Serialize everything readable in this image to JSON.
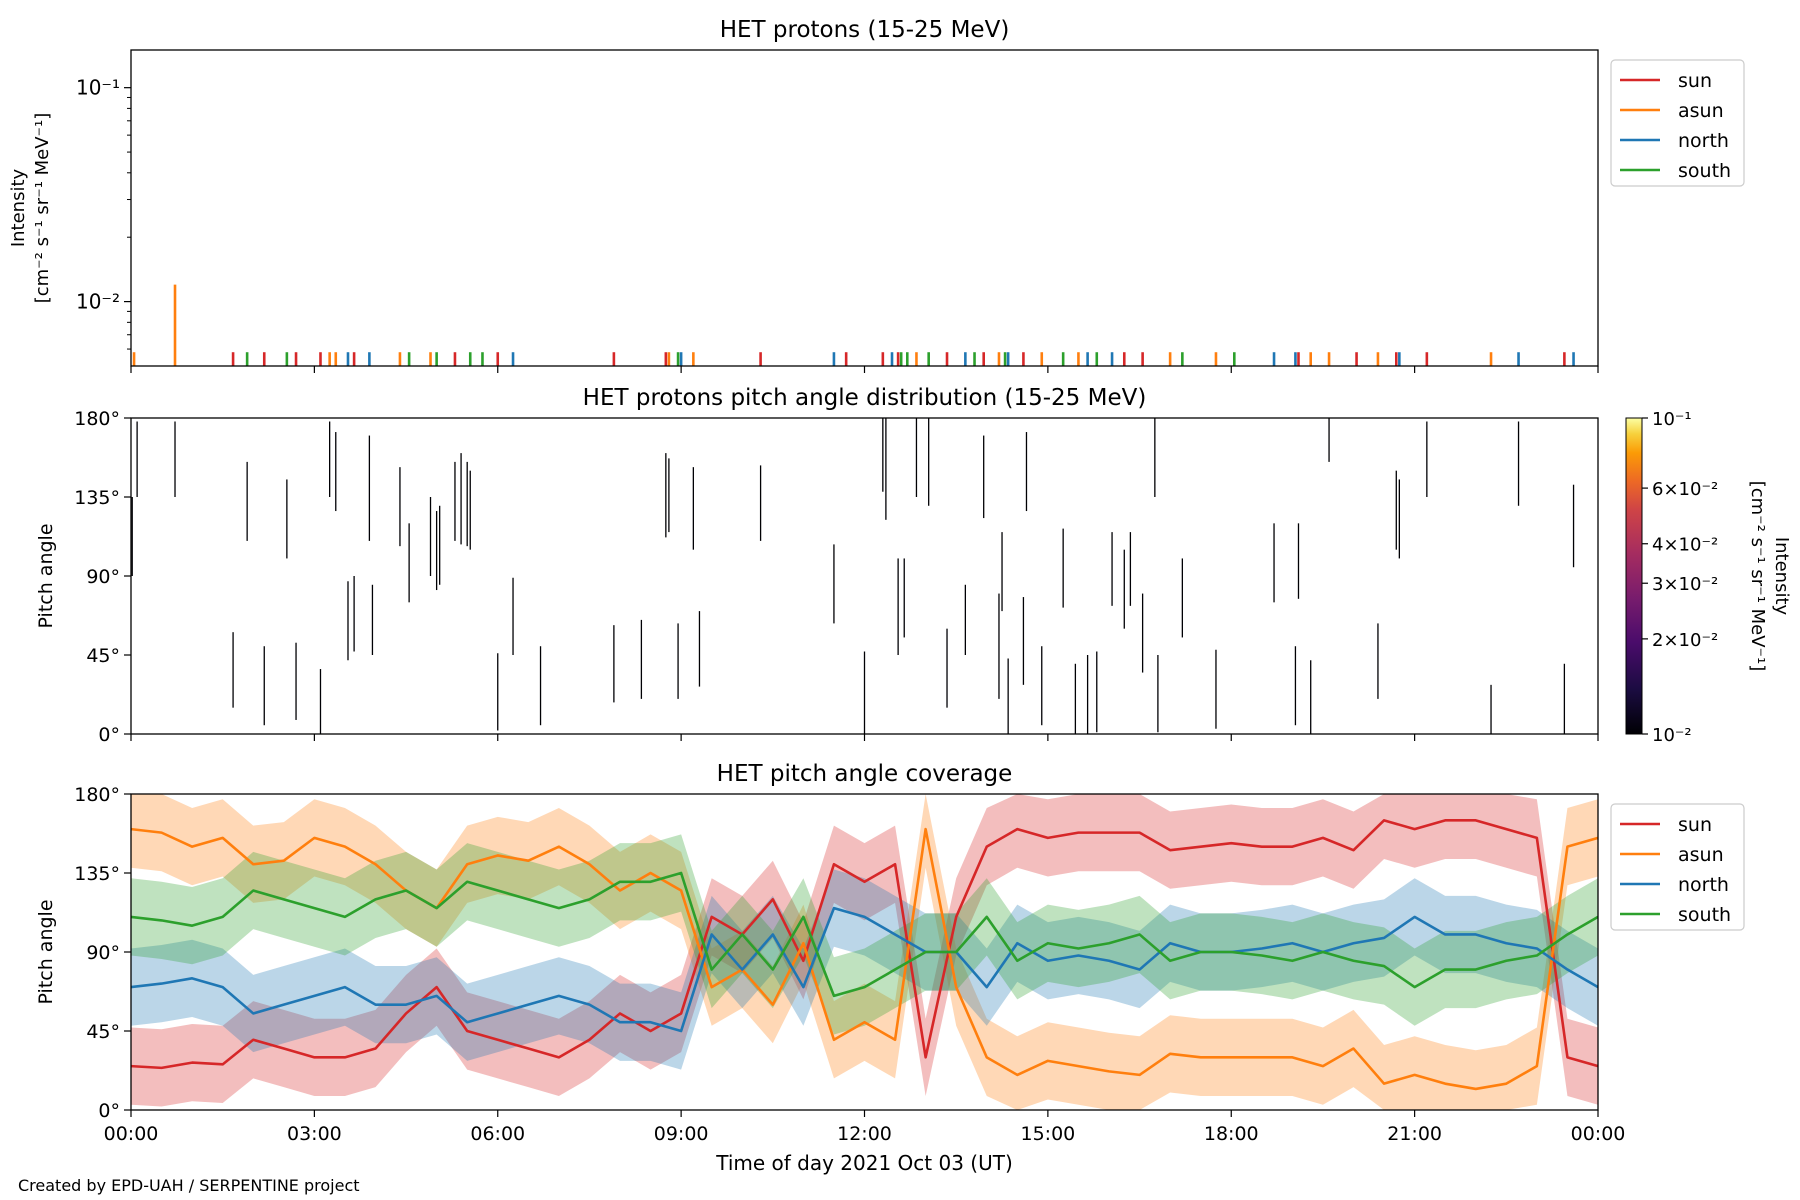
{
  "figure": {
    "credit": "Created by EPD-UAH / SERPENTINE project",
    "xlabel": "Time of day 2021 Oct 03 (UT)",
    "xticks": [
      "00:00",
      "03:00",
      "06:00",
      "09:00",
      "12:00",
      "15:00",
      "18:00",
      "21:00",
      "00:00"
    ],
    "xrange_hours": [
      0,
      24
    ]
  },
  "chart_data": [
    {
      "type": "line",
      "title": "HET protons (15-25 MeV)",
      "ylabel_line1": "Intensity",
      "ylabel_line2": "[cm⁻² s⁻¹ sr⁻¹ MeV⁻¹]",
      "yscale": "log",
      "ylim": [
        0.005,
        0.15
      ],
      "yticks": [
        {
          "value": 0.1,
          "label": "10⁻¹"
        },
        {
          "value": 0.01,
          "label": "10⁻²"
        }
      ],
      "legend_position": "outside-top-right",
      "baseline": 0.005,
      "series": [
        {
          "name": "sun",
          "color": "#d62728",
          "spikes": [
            [
              1.67,
              0.0058
            ],
            [
              2.18,
              0.0058
            ],
            [
              2.7,
              0.0058
            ],
            [
              3.1,
              0.0058
            ],
            [
              3.65,
              0.0058
            ],
            [
              5.3,
              0.0058
            ],
            [
              6.0,
              0.0058
            ],
            [
              7.9,
              0.0058
            ],
            [
              8.75,
              0.0058
            ],
            [
              10.3,
              0.0058
            ],
            [
              11.7,
              0.0058
            ],
            [
              12.3,
              0.0058
            ],
            [
              12.55,
              0.0058
            ],
            [
              13.35,
              0.0058
            ],
            [
              13.95,
              0.0058
            ],
            [
              14.6,
              0.0058
            ],
            [
              16.25,
              0.0058
            ],
            [
              16.55,
              0.0058
            ],
            [
              19.1,
              0.0058
            ],
            [
              20.05,
              0.0058
            ],
            [
              20.7,
              0.0058
            ],
            [
              21.2,
              0.0058
            ],
            [
              23.45,
              0.0058
            ]
          ]
        },
        {
          "name": "asun",
          "color": "#ff7f0e",
          "spikes": [
            [
              0.05,
              0.0058
            ],
            [
              0.72,
              0.012
            ],
            [
              3.25,
              0.0058
            ],
            [
              3.35,
              0.0058
            ],
            [
              4.4,
              0.0058
            ],
            [
              4.9,
              0.0058
            ],
            [
              8.8,
              0.0058
            ],
            [
              9.2,
              0.0058
            ],
            [
              12.85,
              0.0058
            ],
            [
              14.2,
              0.0058
            ],
            [
              14.9,
              0.0058
            ],
            [
              15.5,
              0.0058
            ],
            [
              17.0,
              0.0058
            ],
            [
              17.75,
              0.0058
            ],
            [
              19.3,
              0.0058
            ],
            [
              19.6,
              0.0058
            ],
            [
              20.4,
              0.0058
            ],
            [
              22.25,
              0.0058
            ]
          ]
        },
        {
          "name": "north",
          "color": "#1f77b4",
          "spikes": [
            [
              3.55,
              0.0058
            ],
            [
              3.9,
              0.0058
            ],
            [
              6.25,
              0.0058
            ],
            [
              9.0,
              0.0058
            ],
            [
              11.5,
              0.0058
            ],
            [
              12.45,
              0.0058
            ],
            [
              13.65,
              0.0058
            ],
            [
              14.35,
              0.0058
            ],
            [
              15.65,
              0.0058
            ],
            [
              16.05,
              0.0058
            ],
            [
              18.7,
              0.0058
            ],
            [
              19.05,
              0.0058
            ],
            [
              20.75,
              0.0058
            ],
            [
              22.7,
              0.0058
            ],
            [
              23.6,
              0.0058
            ]
          ]
        },
        {
          "name": "south",
          "color": "#2ca02c",
          "spikes": [
            [
              1.9,
              0.0058
            ],
            [
              2.55,
              0.0058
            ],
            [
              4.55,
              0.0058
            ],
            [
              5.0,
              0.0058
            ],
            [
              5.55,
              0.0058
            ],
            [
              5.75,
              0.0058
            ],
            [
              8.95,
              0.0058
            ],
            [
              12.6,
              0.0058
            ],
            [
              12.7,
              0.0058
            ],
            [
              13.05,
              0.0058
            ],
            [
              13.8,
              0.0058
            ],
            [
              14.3,
              0.0058
            ],
            [
              15.25,
              0.0058
            ],
            [
              15.8,
              0.0058
            ],
            [
              17.2,
              0.0058
            ],
            [
              18.05,
              0.0058
            ]
          ]
        }
      ]
    },
    {
      "type": "heatmap",
      "title": "HET protons pitch angle distribution (15-25 MeV)",
      "ylabel": "Pitch angle",
      "ylim": [
        0,
        180
      ],
      "yticks": [
        {
          "value": 0,
          "label": "0°"
        },
        {
          "value": 45,
          "label": "45°"
        },
        {
          "value": 90,
          "label": "90°"
        },
        {
          "value": 135,
          "label": "135°"
        },
        {
          "value": 180,
          "label": "180°"
        }
      ],
      "colorbar": {
        "label_line1": "Intensity",
        "label_line2": "[cm⁻² s⁻¹ sr⁻¹ MeV⁻¹]",
        "scale": "log",
        "range": [
          0.01,
          0.1
        ],
        "colormap": "inferno",
        "ticks": [
          {
            "value": 0.1,
            "label": "10⁻¹"
          },
          {
            "value": 0.06,
            "label": "6×10⁻²"
          },
          {
            "value": 0.04,
            "label": "4×10⁻²"
          },
          {
            "value": 0.03,
            "label": "3×10⁻²"
          },
          {
            "value": 0.02,
            "label": "2×10⁻²"
          },
          {
            "value": 0.01,
            "label": "10⁻²"
          }
        ]
      },
      "segments_hours_deg": [
        [
          0.02,
          90,
          135
        ],
        [
          0.1,
          135,
          178
        ],
        [
          0.72,
          135,
          178
        ],
        [
          1.67,
          15,
          58
        ],
        [
          1.9,
          110,
          155
        ],
        [
          2.18,
          5,
          50
        ],
        [
          2.55,
          100,
          145
        ],
        [
          2.7,
          8,
          52
        ],
        [
          3.1,
          0,
          37
        ],
        [
          3.25,
          135,
          178
        ],
        [
          3.35,
          127,
          172
        ],
        [
          3.55,
          42,
          87
        ],
        [
          3.65,
          47,
          90
        ],
        [
          3.9,
          110,
          170
        ],
        [
          3.95,
          45,
          85
        ],
        [
          4.4,
          107,
          152
        ],
        [
          4.55,
          75,
          120
        ],
        [
          4.9,
          90,
          135
        ],
        [
          5.0,
          82,
          127
        ],
        [
          5.05,
          85,
          130
        ],
        [
          5.3,
          110,
          155
        ],
        [
          5.4,
          108,
          160
        ],
        [
          5.5,
          107,
          155
        ],
        [
          5.55,
          105,
          150
        ],
        [
          6.0,
          2,
          46
        ],
        [
          6.25,
          45,
          89
        ],
        [
          6.7,
          5,
          50
        ],
        [
          7.9,
          18,
          62
        ],
        [
          8.35,
          20,
          65
        ],
        [
          8.75,
          112,
          160
        ],
        [
          8.8,
          115,
          157
        ],
        [
          8.95,
          20,
          63
        ],
        [
          9.2,
          105,
          152
        ],
        [
          9.3,
          27,
          70
        ],
        [
          10.3,
          110,
          153
        ],
        [
          11.5,
          63,
          108
        ],
        [
          12.0,
          0,
          47
        ],
        [
          12.3,
          138,
          180
        ],
        [
          12.35,
          122,
          180
        ],
        [
          12.55,
          45,
          100
        ],
        [
          12.65,
          55,
          100
        ],
        [
          12.85,
          135,
          180
        ],
        [
          13.05,
          130,
          180
        ],
        [
          13.35,
          15,
          60
        ],
        [
          13.65,
          45,
          85
        ],
        [
          13.95,
          123,
          170
        ],
        [
          14.2,
          20,
          80
        ],
        [
          14.25,
          70,
          115
        ],
        [
          14.35,
          0,
          43
        ],
        [
          14.6,
          28,
          78
        ],
        [
          14.65,
          127,
          172
        ],
        [
          14.9,
          5,
          50
        ],
        [
          15.25,
          72,
          117
        ],
        [
          15.45,
          0,
          40
        ],
        [
          15.65,
          0,
          45
        ],
        [
          15.8,
          1,
          47
        ],
        [
          16.05,
          73,
          115
        ],
        [
          16.25,
          60,
          105
        ],
        [
          16.35,
          73,
          115
        ],
        [
          16.55,
          35,
          80
        ],
        [
          16.75,
          135,
          180
        ],
        [
          16.8,
          1,
          45
        ],
        [
          17.2,
          55,
          100
        ],
        [
          17.75,
          3,
          48
        ],
        [
          18.7,
          75,
          120
        ],
        [
          19.05,
          5,
          50
        ],
        [
          19.1,
          77,
          120
        ],
        [
          19.3,
          0,
          42
        ],
        [
          19.6,
          155,
          180
        ],
        [
          20.4,
          20,
          63
        ],
        [
          20.7,
          105,
          150
        ],
        [
          20.75,
          100,
          145
        ],
        [
          21.2,
          135,
          178
        ],
        [
          22.25,
          0,
          28
        ],
        [
          22.7,
          130,
          178
        ],
        [
          23.45,
          0,
          40
        ],
        [
          23.6,
          95,
          142
        ]
      ]
    },
    {
      "type": "line",
      "title": "HET pitch angle coverage",
      "ylabel": "Pitch angle",
      "ylim": [
        0,
        180
      ],
      "yticks": [
        {
          "value": 0,
          "label": "0°"
        },
        {
          "value": 45,
          "label": "45°"
        },
        {
          "value": 90,
          "label": "90°"
        },
        {
          "value": 135,
          "label": "135°"
        },
        {
          "value": 180,
          "label": "180°"
        }
      ],
      "legend_position": "outside-top-right",
      "x_hours": [
        0,
        0.5,
        1,
        1.5,
        2,
        2.5,
        3,
        3.5,
        4,
        4.5,
        5,
        5.5,
        6,
        6.5,
        7,
        7.5,
        8,
        8.5,
        9,
        9.5,
        10,
        10.5,
        11,
        11.5,
        12,
        12.5,
        13,
        13.5,
        14,
        14.5,
        15,
        15.5,
        16,
        16.5,
        17,
        17.5,
        18,
        18.5,
        19,
        19.5,
        20,
        20.5,
        21,
        21.5,
        22,
        22.5,
        23,
        23.5,
        24
      ],
      "band_halfwidth_deg": 22,
      "series": [
        {
          "name": "sun",
          "color": "#d62728",
          "values": [
            25,
            24,
            27,
            26,
            40,
            35,
            30,
            30,
            35,
            55,
            70,
            45,
            40,
            35,
            30,
            40,
            55,
            45,
            55,
            110,
            100,
            120,
            85,
            140,
            130,
            140,
            30,
            110,
            150,
            160,
            155,
            158,
            158,
            158,
            148,
            150,
            152,
            150,
            150,
            155,
            148,
            165,
            160,
            165,
            165,
            160,
            155,
            30,
            25
          ]
        },
        {
          "name": "asun",
          "color": "#ff7f0e",
          "values": [
            160,
            158,
            150,
            155,
            140,
            142,
            155,
            150,
            140,
            125,
            115,
            140,
            145,
            142,
            150,
            140,
            125,
            135,
            125,
            70,
            80,
            60,
            95,
            40,
            50,
            40,
            160,
            70,
            30,
            20,
            28,
            25,
            22,
            20,
            32,
            30,
            30,
            30,
            30,
            25,
            35,
            15,
            20,
            15,
            12,
            15,
            25,
            150,
            155
          ]
        },
        {
          "name": "north",
          "color": "#1f77b4",
          "values": [
            70,
            72,
            75,
            70,
            55,
            60,
            65,
            70,
            60,
            60,
            65,
            50,
            55,
            60,
            65,
            60,
            50,
            50,
            45,
            100,
            80,
            100,
            70,
            115,
            110,
            100,
            90,
            90,
            70,
            95,
            85,
            88,
            85,
            80,
            95,
            90,
            90,
            92,
            95,
            90,
            95,
            98,
            110,
            100,
            100,
            95,
            92,
            80,
            70
          ]
        },
        {
          "name": "south",
          "color": "#2ca02c",
          "values": [
            110,
            108,
            105,
            110,
            125,
            120,
            115,
            110,
            120,
            125,
            115,
            130,
            125,
            120,
            115,
            120,
            130,
            130,
            135,
            80,
            100,
            80,
            110,
            65,
            70,
            80,
            90,
            90,
            110,
            85,
            95,
            92,
            95,
            100,
            85,
            90,
            90,
            88,
            85,
            90,
            85,
            82,
            70,
            80,
            80,
            85,
            88,
            100,
            110
          ]
        }
      ]
    }
  ]
}
